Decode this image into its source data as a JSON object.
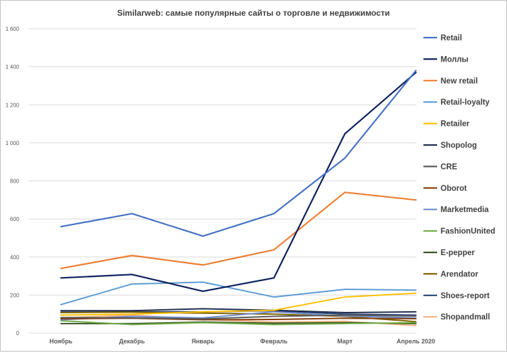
{
  "chart_data": {
    "type": "line",
    "title": "Similarweb: самые популярные сайты о торговле и недвижимости",
    "xlabel": "",
    "ylabel": "",
    "x": [
      "Ноябрь",
      "Декабрь",
      "Январь",
      "Февраль",
      "Март",
      "Апрель 2020"
    ],
    "ylim": [
      0,
      1600
    ],
    "yticks": [
      {
        "value": 0,
        "label": "0"
      },
      {
        "value": 200,
        "label": "200"
      },
      {
        "value": 400,
        "label": "400"
      },
      {
        "value": 600,
        "label": "600"
      },
      {
        "value": 800,
        "label": "800"
      },
      {
        "value": 1000,
        "label": "1 000"
      },
      {
        "value": 1200,
        "label": "1 200"
      },
      {
        "value": 1400,
        "label": "1 400"
      },
      {
        "value": 1600,
        "label": "1 600"
      }
    ],
    "grid": true,
    "legend_position": "right",
    "series": [
      {
        "name": "Retail",
        "color": "#4472c4",
        "values": [
          560,
          628,
          510,
          628,
          920,
          1380
        ]
      },
      {
        "name": "Моллы",
        "color": "#0b1f5c",
        "values": [
          290,
          308,
          220,
          290,
          1048,
          1370
        ]
      },
      {
        "name": "New retail",
        "color": "#ed7d31",
        "values": [
          340,
          408,
          358,
          438,
          740,
          700
        ]
      },
      {
        "name": "Retail-loyalty",
        "color": "#5b9bd5",
        "values": [
          150,
          258,
          268,
          190,
          230,
          226
        ]
      },
      {
        "name": "Retailer",
        "color": "#ffc000",
        "values": [
          95,
          100,
          112,
          120,
          190,
          210
        ]
      },
      {
        "name": "Shopolog",
        "color": "#1f2d4d",
        "values": [
          118,
          118,
          128,
          120,
          108,
          112
        ]
      },
      {
        "name": "CRE",
        "color": "#595959",
        "values": [
          82,
          80,
          75,
          88,
          95,
          90
        ]
      },
      {
        "name": "Oborot",
        "color": "#843c0c",
        "values": [
          75,
          78,
          70,
          72,
          78,
          76
        ]
      },
      {
        "name": "Marketmedia",
        "color": "#6f8fcf",
        "values": [
          70,
          88,
          80,
          112,
          90,
          80
        ]
      },
      {
        "name": "FashionUnited",
        "color": "#70ad47",
        "values": [
          65,
          45,
          55,
          45,
          50,
          55
        ]
      },
      {
        "name": "E-pepper",
        "color": "#375623",
        "values": [
          50,
          50,
          58,
          52,
          55,
          50
        ]
      },
      {
        "name": "Arendator",
        "color": "#7f6000",
        "values": [
          108,
          110,
          105,
          100,
          88,
          60
        ]
      },
      {
        "name": "Shoes-report",
        "color": "#264478",
        "values": [
          110,
          112,
          112,
          118,
          100,
          95
        ]
      },
      {
        "name": "Shopandmall",
        "color": "#f4b183",
        "values": [
          80,
          95,
          72,
          58,
          62,
          40
        ]
      }
    ]
  }
}
